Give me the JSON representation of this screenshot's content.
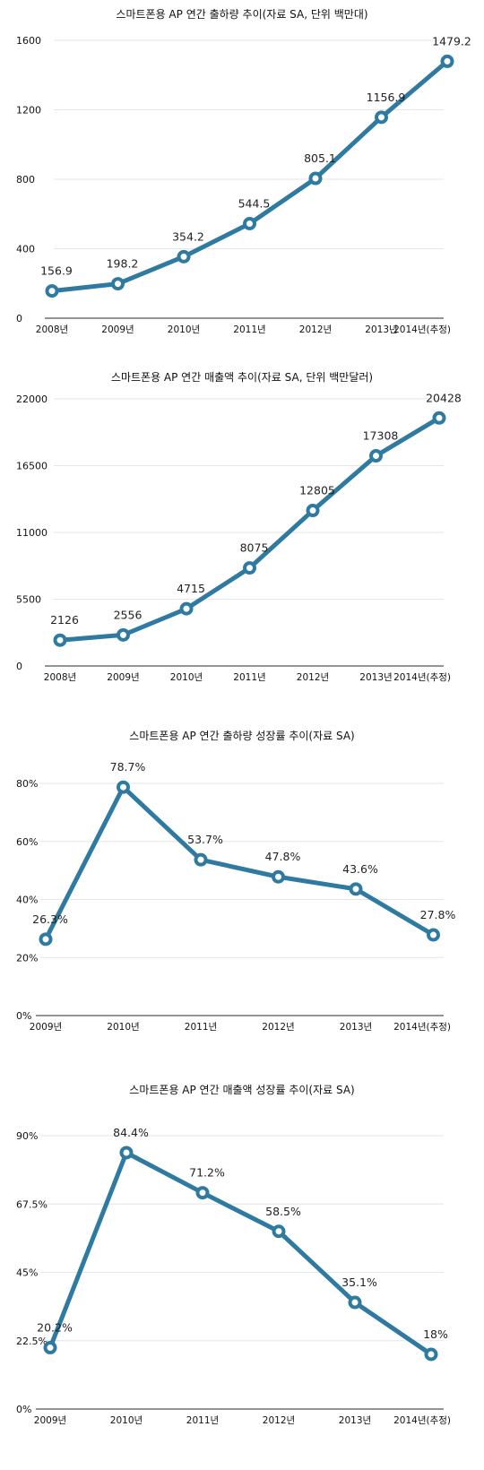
{
  "chart_data": [
    {
      "type": "line",
      "title": "스마트폰용 AP 연간 출하량 추이(자료 SA, 단위 백만대)",
      "categories": [
        "2008년",
        "2009년",
        "2010년",
        "2011년",
        "2012년",
        "2013년",
        "2014년(추정)"
      ],
      "values": [
        156.9,
        198.2,
        354.2,
        544.5,
        805.1,
        1156.9,
        1479.2
      ],
      "data_labels": [
        "156.9",
        "198.2",
        "354.2",
        "544.5",
        "805.1",
        "1156.9",
        "1479.2"
      ],
      "yticks": [
        0,
        400,
        800,
        1200,
        1600
      ],
      "ytick_labels": [
        "0",
        "400",
        "800",
        "1200",
        "1600"
      ],
      "ylim": [
        0,
        1600
      ],
      "grid": true,
      "color": "#2f7aa0"
    },
    {
      "type": "line",
      "title": "스마트폰용 AP 연간 매출액 추이(자료 SA, 단위 백만달러)",
      "categories": [
        "2008년",
        "2009년",
        "2010년",
        "2011년",
        "2012년",
        "2013년",
        "2014년(추정)"
      ],
      "values": [
        2126,
        2556,
        4715,
        8075,
        12805,
        17308,
        20428
      ],
      "data_labels": [
        "2126",
        "2556",
        "4715",
        "8075",
        "12805",
        "17308",
        "20428"
      ],
      "yticks": [
        0,
        5500,
        11000,
        16500,
        22000
      ],
      "ytick_labels": [
        "0",
        "5500",
        "11000",
        "16500",
        "22000"
      ],
      "ylim": [
        0,
        22000
      ],
      "grid": true,
      "color": "#2f7aa0"
    },
    {
      "type": "line",
      "title": "스마트폰용 AP 연간 출하량 성장률 추이(자료 SA)",
      "categories": [
        "2009년",
        "2010년",
        "2011년",
        "2012년",
        "2013년",
        "2014년(추정)"
      ],
      "values": [
        26.3,
        78.7,
        53.7,
        47.8,
        43.6,
        27.8
      ],
      "data_labels": [
        "26.3%",
        "78.7%",
        "53.7%",
        "47.8%",
        "43.6%",
        "27.8%"
      ],
      "yticks": [
        0,
        20,
        40,
        60,
        80
      ],
      "ytick_labels": [
        "0%",
        "20%",
        "40%",
        "60%",
        "80%"
      ],
      "ylim": [
        0,
        80
      ],
      "grid": true,
      "color": "#2f7aa0"
    },
    {
      "type": "line",
      "title": "스마트폰용 AP 연간 매출액 성장률 추이(자료 SA)",
      "categories": [
        "2009년",
        "2010년",
        "2011년",
        "2012년",
        "2013년",
        "2014년(추정)"
      ],
      "values": [
        20.2,
        84.4,
        71.2,
        58.5,
        35.1,
        18
      ],
      "data_labels": [
        "20.2%",
        "84.4%",
        "71.2%",
        "58.5%",
        "35.1%",
        "18%"
      ],
      "yticks": [
        0,
        22.5,
        45,
        67.5,
        90
      ],
      "ytick_labels": [
        "0%",
        "22.5%",
        "45%",
        "67.5%",
        "90%"
      ],
      "ylim": [
        0,
        90
      ],
      "grid": true,
      "color": "#2f7aa0"
    }
  ]
}
